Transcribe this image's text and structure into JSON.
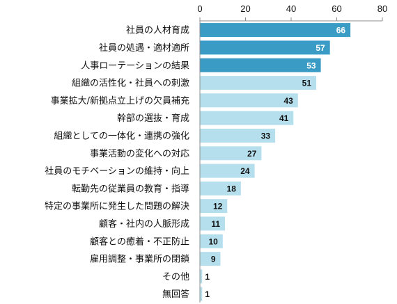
{
  "chart_data": {
    "type": "bar",
    "orientation": "horizontal",
    "title": "",
    "xlabel": "",
    "ylabel": "",
    "xlim": [
      0,
      80
    ],
    "ticks": [
      0,
      20,
      40,
      60,
      80
    ],
    "axis_position": "top",
    "grid": false,
    "categories": [
      "社員の人材育成",
      "社員の処遇・適材適所",
      "人事ローテーションの結果",
      "組織の活性化・社員への刺激",
      "事業拡大/新拠点立上げの欠員補充",
      "幹部の選抜・育成",
      "組織としての一体化・連携の強化",
      "事業活動の変化への対応",
      "社員のモチベーションの維持・向上",
      "転勤先の従業員の教育・指導",
      "特定の事業所に発生した問題の解決",
      "顧客・社内の人脈形成",
      "顧客との癒着・不正防止",
      "雇用調整・事業所の閉鎖",
      "その他",
      "無回答"
    ],
    "values": [
      66,
      57,
      53,
      51,
      43,
      41,
      33,
      27,
      24,
      18,
      12,
      11,
      10,
      9,
      1,
      1
    ],
    "highlight_count": 3,
    "colors": {
      "highlight": "#3a9cc4",
      "normal": "#b6dfee",
      "highlight_text": "#ffffff",
      "normal_text": "#111111",
      "axis": "#8c8c8c"
    }
  }
}
